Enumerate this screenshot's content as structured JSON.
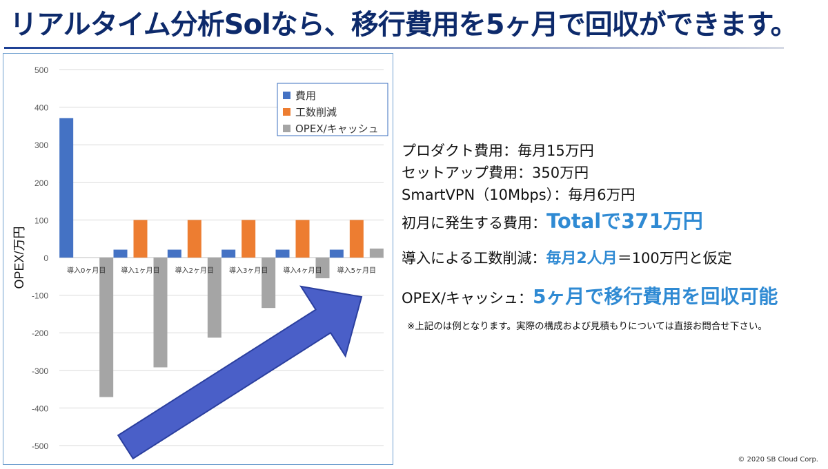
{
  "slide": {
    "title": "リアルタイム分析Solなら、移行費用を5ヶ月で回収ができます。",
    "copyright": "© 2020 SB Cloud Corp."
  },
  "panel": {
    "product_cost": "プロダクト費用：毎月15万円",
    "setup_cost": "セットアップ費用：350万円",
    "vpn_cost": "SmartVPN（10Mbps）：毎月6万円",
    "first_month_label": "初月に発生する費用：",
    "first_month_total": "Totalで371万円",
    "reduction_label": "導入による工数削減：",
    "reduction_highlight": "毎月2人月",
    "reduction_suffix": "＝100万円と仮定",
    "opex_label": "OPEX/キャッシュ：",
    "opex_highlight": "5ヶ月で移行費用を回収可能",
    "note": "※上記のは例となります。実際の構成および見積もりについては直接お問合せ下さい。"
  },
  "colors": {
    "cost": "#4472c4",
    "reduction": "#ed7d31",
    "opex": "#a5a5a5",
    "arrow": "#4a5fc8",
    "title": "#0d2a6b",
    "highlight": "#2f8ad3"
  },
  "chart_data": {
    "type": "bar",
    "ylabel": "OPEX/万円",
    "ylim": [
      -500,
      500
    ],
    "yticks": [
      500,
      400,
      300,
      200,
      100,
      0,
      -100,
      -200,
      -300,
      -400,
      -500
    ],
    "grid": true,
    "legend_position": "top-right",
    "categories": [
      "導入0ヶ月目",
      "導入1ヶ月目",
      "導入2ヶ月目",
      "導入3ヶ月目",
      "導入4ヶ月目",
      "導入5ヶ月目"
    ],
    "series": [
      {
        "name": "費用",
        "color_key": "cost",
        "values": [
          371,
          21,
          21,
          21,
          21,
          21
        ]
      },
      {
        "name": "工数削減",
        "color_key": "reduction",
        "values": [
          0,
          100,
          100,
          100,
          100,
          100
        ]
      },
      {
        "name": "OPEX/キャッシュ",
        "color_key": "opex",
        "values": [
          -371,
          -292,
          -213,
          -134,
          -55,
          24
        ]
      }
    ]
  }
}
